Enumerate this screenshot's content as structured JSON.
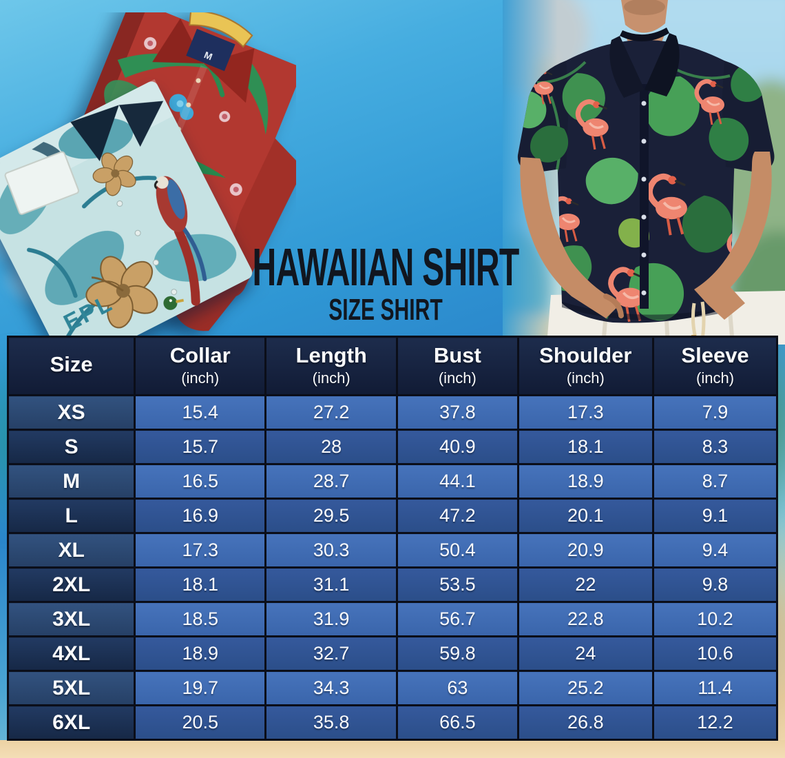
{
  "page": {
    "title": "HAWAIIAN SHIRT",
    "subtitle": "SIZE SHIRT"
  },
  "decor": {
    "red_shirt_label_size": "M",
    "teal_shirt_print_text": "EPL"
  },
  "size_chart": {
    "headers": [
      {
        "label": "Size",
        "unit": ""
      },
      {
        "label": "Collar",
        "unit": "(inch)"
      },
      {
        "label": "Length",
        "unit": "(inch)"
      },
      {
        "label": "Bust",
        "unit": "(inch)"
      },
      {
        "label": "Shoulder",
        "unit": "(inch)"
      },
      {
        "label": "Sleeve",
        "unit": "(inch)"
      }
    ],
    "rows": [
      {
        "size": "XS",
        "values": [
          "15.4",
          "27.2",
          "37.8",
          "17.3",
          "7.9"
        ]
      },
      {
        "size": "S",
        "values": [
          "15.7",
          "28",
          "40.9",
          "18.1",
          "8.3"
        ]
      },
      {
        "size": "M",
        "values": [
          "16.5",
          "28.7",
          "44.1",
          "18.9",
          "8.7"
        ]
      },
      {
        "size": "L",
        "values": [
          "16.9",
          "29.5",
          "47.2",
          "20.1",
          "9.1"
        ]
      },
      {
        "size": "XL",
        "values": [
          "17.3",
          "30.3",
          "50.4",
          "20.9",
          "9.4"
        ]
      },
      {
        "size": "2XL",
        "values": [
          "18.1",
          "31.1",
          "53.5",
          "22",
          "9.8"
        ]
      },
      {
        "size": "3XL",
        "values": [
          "18.5",
          "31.9",
          "56.7",
          "22.8",
          "10.2"
        ]
      },
      {
        "size": "4XL",
        "values": [
          "18.9",
          "32.7",
          "59.8",
          "24",
          "10.6"
        ]
      },
      {
        "size": "5XL",
        "values": [
          "19.7",
          "34.3",
          "63",
          "25.2",
          "11.4"
        ]
      },
      {
        "size": "6XL",
        "values": [
          "20.5",
          "35.8",
          "66.5",
          "26.8",
          "12.2"
        ]
      }
    ]
  },
  "chart_data": {
    "type": "table",
    "title": "HAWAIIAN SHIRT SIZE SHIRT",
    "columns": [
      "Size",
      "Collar (inch)",
      "Length (inch)",
      "Bust (inch)",
      "Shoulder (inch)",
      "Sleeve (inch)"
    ],
    "rows": [
      [
        "XS",
        15.4,
        27.2,
        37.8,
        17.3,
        7.9
      ],
      [
        "S",
        15.7,
        28,
        40.9,
        18.1,
        8.3
      ],
      [
        "M",
        16.5,
        28.7,
        44.1,
        18.9,
        8.7
      ],
      [
        "L",
        16.9,
        29.5,
        47.2,
        20.1,
        9.1
      ],
      [
        "XL",
        17.3,
        30.3,
        50.4,
        20.9,
        9.4
      ],
      [
        "2XL",
        18.1,
        31.1,
        53.5,
        22,
        9.8
      ],
      [
        "3XL",
        18.5,
        31.9,
        56.7,
        22.8,
        10.2
      ],
      [
        "4XL",
        18.9,
        32.7,
        59.8,
        24,
        10.6
      ],
      [
        "5XL",
        19.7,
        34.3,
        63,
        25.2,
        11.4
      ],
      [
        "6XL",
        20.5,
        35.8,
        66.5,
        26.8,
        12.2
      ]
    ]
  },
  "colors": {
    "header_bg": "#131f3a",
    "row_light_value": "#3d6cb4",
    "row_dark_value": "#2e5494",
    "row_light_size": "#2b4a77",
    "row_dark_size": "#1b2d50",
    "table_border": "#0b0e19",
    "table_text": "#ffffff",
    "title_text": "#11161f",
    "sky_blue": "#2f97d4",
    "sand": "#ecd2a4"
  }
}
